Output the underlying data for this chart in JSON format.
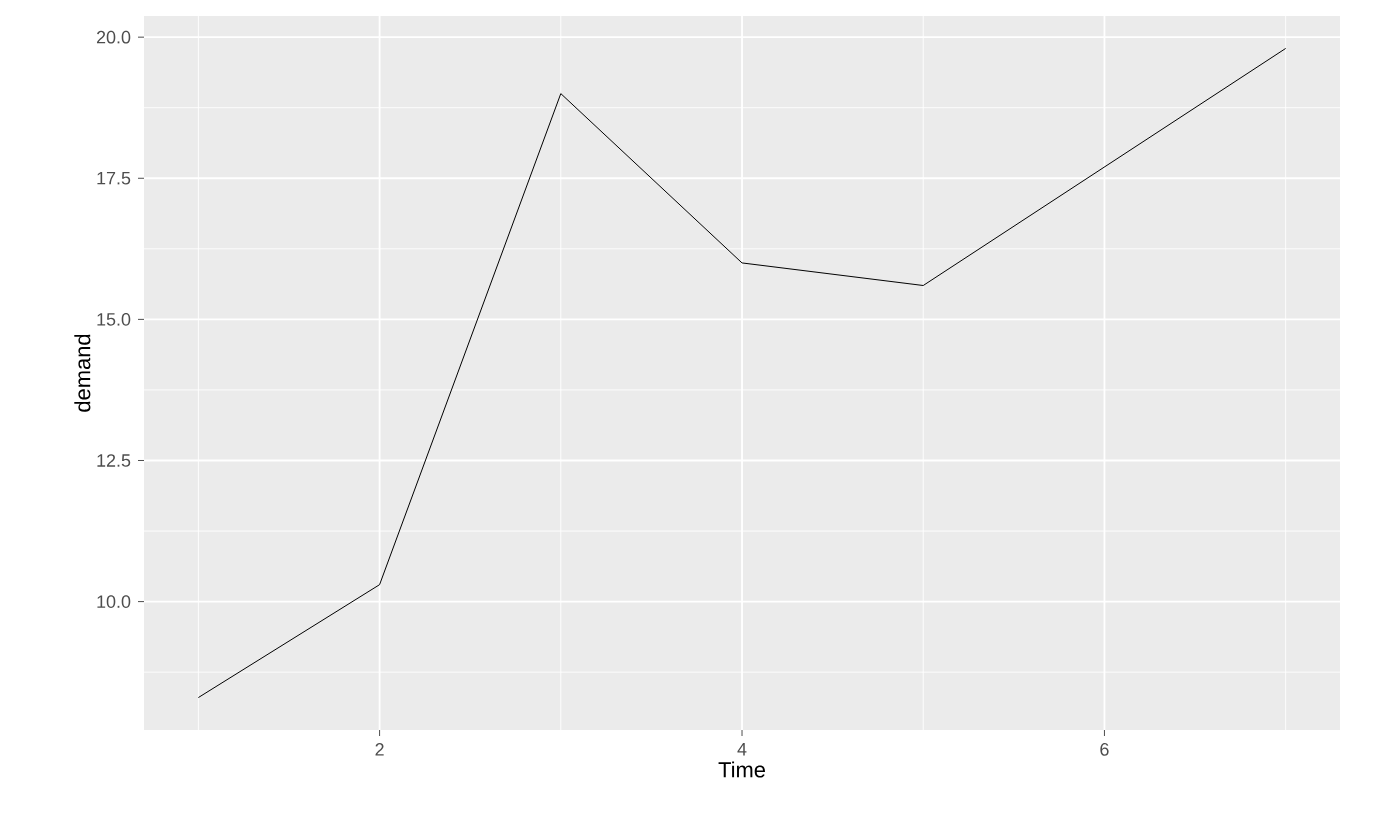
{
  "chart_data": {
    "type": "line",
    "xlabel": "Time",
    "ylabel": "demand",
    "x": [
      1,
      2,
      3,
      4,
      5,
      7
    ],
    "series": [
      {
        "color": "#000000",
        "values": [
          8.3,
          10.3,
          19.0,
          16.0,
          15.6,
          19.8
        ]
      }
    ],
    "xlim": [
      0.7,
      7.3
    ],
    "ylim": [
      7.725,
      20.375
    ],
    "xticks": [
      2,
      4,
      6
    ],
    "yticks": [
      {
        "value": 10,
        "label": "10.0"
      },
      {
        "value": 12.5,
        "label": "12.5"
      },
      {
        "value": 15,
        "label": "15.0"
      },
      {
        "value": 17.5,
        "label": "17.5"
      },
      {
        "value": 20,
        "label": "20.0"
      }
    ],
    "grid": true,
    "marker": "none",
    "line_style": "solid"
  }
}
